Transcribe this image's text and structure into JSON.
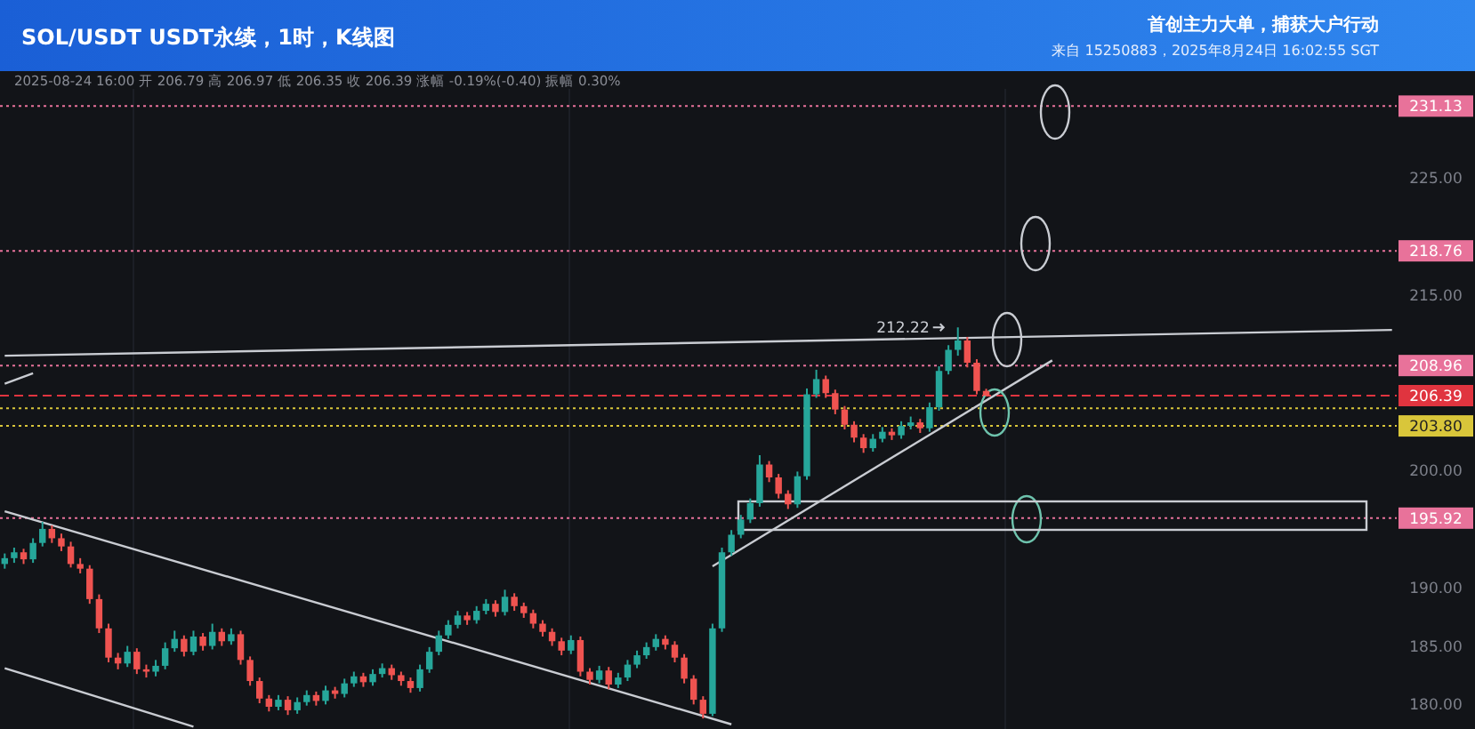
{
  "chart_data": {
    "type": "candlestick",
    "title": "SOL/USDT USDT永续，1时，K线图",
    "subtitle": "首创主力大单，捕获大户行动",
    "annotations": [
      "2025-08-24 16:00 开 206.79 高 206.97 低 206.35 收 206.39 涨幅 -0.19%(-0.40) 振幅 0.30%",
      "来自 15250883，2025年8月24日 16:02:55 SGT",
      "212.22"
    ],
    "categories": [
      null,
      null,
      null,
      null,
      null,
      null,
      null,
      null,
      null,
      null,
      null,
      null,
      null,
      null,
      null,
      null,
      null,
      null,
      null,
      null,
      null,
      null,
      null,
      null,
      null,
      null,
      null,
      null,
      null,
      null,
      null,
      null,
      null,
      null,
      null,
      null,
      null,
      null,
      null,
      null,
      null,
      null,
      null,
      null,
      null,
      null,
      null,
      null,
      null,
      null,
      null,
      null,
      null,
      null,
      null,
      null,
      null,
      null,
      null,
      null,
      null,
      null,
      null,
      null,
      null,
      null,
      null,
      null,
      null,
      null,
      null,
      null,
      null,
      null,
      null,
      null,
      null,
      null,
      null,
      null,
      null,
      null,
      null,
      null,
      null,
      null,
      null,
      null,
      null,
      null,
      null,
      null,
      null,
      null,
      null,
      null,
      null,
      null,
      null,
      null,
      null,
      null,
      null,
      null,
      null,
      null,
      null,
      null,
      null,
      null,
      null,
      null,
      null,
      null,
      null,
      null,
      null,
      null,
      null,
      null,
      null,
      null,
      null,
      null,
      null,
      null,
      null,
      null,
      null,
      null,
      null,
      null,
      null,
      null,
      null,
      null,
      null,
      null,
      null,
      null,
      null,
      null,
      null,
      null,
      null,
      null,
      null,
      null
    ],
    "ohlc": [
      [
        192.0,
        192.9,
        191.6,
        192.5
      ],
      [
        192.5,
        193.4,
        192.1,
        193.0
      ],
      [
        193.0,
        193.3,
        192.0,
        192.4
      ],
      [
        192.4,
        194.2,
        192.1,
        193.8
      ],
      [
        193.8,
        195.6,
        193.5,
        195.0
      ],
      [
        195.0,
        195.3,
        193.8,
        194.2
      ],
      [
        194.2,
        194.6,
        193.1,
        193.5
      ],
      [
        193.5,
        193.9,
        191.7,
        192.0
      ],
      [
        192.0,
        192.5,
        191.2,
        191.6
      ],
      [
        191.6,
        191.9,
        188.6,
        189.0
      ],
      [
        189.0,
        189.4,
        186.1,
        186.5
      ],
      [
        186.5,
        186.9,
        183.6,
        184.0
      ],
      [
        184.0,
        184.4,
        183.0,
        183.5
      ],
      [
        183.5,
        185.0,
        183.2,
        184.5
      ],
      [
        184.5,
        184.8,
        182.6,
        183.0
      ],
      [
        183.0,
        183.4,
        182.3,
        182.8
      ],
      [
        182.8,
        183.8,
        182.4,
        183.3
      ],
      [
        183.3,
        185.3,
        183.0,
        184.8
      ],
      [
        184.8,
        186.3,
        184.5,
        185.6
      ],
      [
        185.6,
        185.9,
        184.1,
        184.5
      ],
      [
        184.5,
        186.3,
        184.2,
        185.8
      ],
      [
        185.8,
        186.1,
        184.6,
        185.0
      ],
      [
        185.0,
        186.9,
        184.7,
        186.2
      ],
      [
        186.2,
        186.5,
        185.0,
        185.4
      ],
      [
        185.4,
        186.5,
        185.1,
        186.0
      ],
      [
        186.0,
        186.3,
        183.4,
        183.8
      ],
      [
        183.8,
        184.1,
        181.6,
        182.0
      ],
      [
        182.0,
        182.3,
        180.1,
        180.5
      ],
      [
        180.5,
        180.8,
        179.4,
        179.8
      ],
      [
        179.8,
        180.8,
        179.5,
        180.4
      ],
      [
        180.4,
        180.7,
        179.1,
        179.5
      ],
      [
        179.5,
        180.6,
        179.2,
        180.2
      ],
      [
        180.2,
        181.2,
        179.9,
        180.8
      ],
      [
        180.8,
        181.1,
        179.9,
        180.3
      ],
      [
        180.3,
        181.6,
        180.0,
        181.2
      ],
      [
        181.2,
        181.5,
        180.5,
        180.9
      ],
      [
        180.9,
        182.2,
        180.6,
        181.8
      ],
      [
        181.8,
        182.8,
        181.5,
        182.4
      ],
      [
        182.4,
        182.7,
        181.5,
        181.9
      ],
      [
        181.9,
        183.0,
        181.6,
        182.6
      ],
      [
        182.6,
        183.5,
        182.3,
        183.1
      ],
      [
        183.1,
        183.4,
        182.1,
        182.5
      ],
      [
        182.5,
        182.8,
        181.6,
        182.0
      ],
      [
        182.0,
        182.3,
        181.0,
        181.4
      ],
      [
        181.4,
        183.4,
        181.1,
        183.0
      ],
      [
        183.0,
        184.9,
        182.7,
        184.5
      ],
      [
        184.5,
        186.3,
        184.2,
        185.9
      ],
      [
        185.9,
        187.2,
        185.6,
        186.8
      ],
      [
        186.8,
        188.0,
        186.5,
        187.6
      ],
      [
        187.6,
        187.9,
        186.8,
        187.2
      ],
      [
        187.2,
        188.4,
        186.9,
        188.0
      ],
      [
        188.0,
        189.0,
        187.7,
        188.6
      ],
      [
        188.6,
        188.9,
        187.5,
        187.9
      ],
      [
        187.9,
        189.8,
        187.6,
        189.2
      ],
      [
        189.2,
        189.5,
        188.0,
        188.4
      ],
      [
        188.4,
        188.7,
        187.4,
        187.8
      ],
      [
        187.8,
        188.1,
        186.5,
        186.9
      ],
      [
        186.9,
        187.2,
        185.8,
        186.2
      ],
      [
        186.2,
        186.5,
        185.0,
        185.4
      ],
      [
        185.4,
        185.7,
        184.2,
        184.6
      ],
      [
        184.6,
        185.9,
        184.3,
        185.5
      ],
      [
        185.5,
        185.8,
        182.4,
        182.8
      ],
      [
        182.8,
        183.1,
        181.7,
        182.1
      ],
      [
        182.1,
        183.3,
        181.8,
        182.9
      ],
      [
        182.9,
        183.2,
        181.3,
        181.7
      ],
      [
        181.7,
        182.7,
        181.4,
        182.3
      ],
      [
        182.3,
        183.8,
        182.0,
        183.4
      ],
      [
        183.4,
        184.6,
        183.1,
        184.2
      ],
      [
        184.2,
        185.3,
        183.9,
        184.9
      ],
      [
        184.9,
        186.0,
        184.6,
        185.6
      ],
      [
        185.6,
        185.9,
        184.7,
        185.1
      ],
      [
        185.1,
        185.4,
        183.6,
        184.0
      ],
      [
        184.0,
        184.3,
        181.8,
        182.2
      ],
      [
        182.2,
        182.5,
        180.0,
        180.4
      ],
      [
        180.4,
        180.7,
        178.8,
        179.2
      ],
      [
        179.2,
        186.9,
        179.0,
        186.5
      ],
      [
        186.5,
        193.4,
        186.2,
        193.0
      ],
      [
        193.0,
        194.9,
        192.7,
        194.5
      ],
      [
        194.5,
        196.2,
        194.2,
        195.8
      ],
      [
        195.8,
        197.6,
        195.5,
        197.2
      ],
      [
        197.2,
        201.3,
        196.9,
        200.5
      ],
      [
        200.5,
        200.8,
        199.0,
        199.4
      ],
      [
        199.4,
        199.7,
        197.6,
        198.0
      ],
      [
        198.0,
        198.3,
        196.7,
        197.1
      ],
      [
        197.1,
        199.9,
        196.8,
        199.5
      ],
      [
        199.5,
        207.0,
        199.2,
        206.5
      ],
      [
        206.5,
        208.6,
        206.2,
        207.8
      ],
      [
        207.8,
        208.1,
        206.2,
        206.6
      ],
      [
        206.6,
        206.9,
        204.8,
        205.2
      ],
      [
        205.2,
        205.5,
        203.5,
        203.9
      ],
      [
        203.9,
        204.2,
        202.4,
        202.8
      ],
      [
        202.8,
        203.1,
        201.5,
        201.9
      ],
      [
        201.9,
        203.1,
        201.6,
        202.7
      ],
      [
        202.7,
        203.7,
        202.4,
        203.3
      ],
      [
        203.3,
        203.6,
        202.6,
        203.0
      ],
      [
        203.0,
        204.2,
        202.7,
        203.8
      ],
      [
        203.8,
        204.6,
        203.5,
        204.1
      ],
      [
        204.1,
        204.4,
        203.2,
        203.6
      ],
      [
        203.6,
        205.8,
        203.3,
        205.4
      ],
      [
        205.4,
        208.9,
        205.1,
        208.5
      ],
      [
        208.5,
        210.7,
        208.2,
        210.3
      ],
      [
        210.3,
        212.22,
        209.8,
        211.1
      ],
      [
        211.1,
        211.4,
        208.8,
        209.2
      ],
      [
        209.2,
        209.5,
        206.5,
        206.79
      ],
      [
        206.79,
        206.97,
        206.35,
        206.39
      ],
      null,
      null,
      null,
      null,
      null,
      null,
      null,
      null,
      null,
      null,
      null,
      null,
      null,
      null,
      null,
      null,
      null,
      null,
      null,
      null,
      null,
      null,
      null,
      null,
      null,
      null,
      null,
      null,
      null,
      null,
      null,
      null,
      null,
      null,
      null,
      null,
      null,
      null,
      null,
      null,
      null,
      null,
      null
    ],
    "series": [
      {
        "type": "line",
        "color": "#c9ccd2",
        "values": [
          196.5,
          null,
          null,
          null,
          null,
          null,
          null,
          null,
          null,
          null,
          null,
          null,
          null,
          null,
          null,
          null,
          null,
          null,
          null,
          null,
          null,
          null,
          null,
          null,
          null,
          null,
          null,
          null,
          null,
          null,
          null,
          null,
          null,
          null,
          null,
          null,
          null,
          null,
          null,
          null,
          null,
          null,
          null,
          null,
          null,
          null,
          null,
          null,
          null,
          null,
          null,
          null,
          null,
          null,
          null,
          null,
          null,
          null,
          null,
          null,
          null,
          null,
          null,
          null,
          null,
          null,
          null,
          null,
          null,
          null,
          null,
          null,
          null,
          null,
          null,
          null,
          null,
          178.3,
          null,
          null,
          null,
          null,
          null,
          null,
          null,
          null,
          null,
          null,
          null,
          null,
          null,
          null,
          null,
          null,
          null,
          null,
          null,
          null,
          null,
          null,
          null,
          null,
          null,
          null,
          null,
          null,
          null,
          null,
          null,
          null,
          null,
          null,
          null,
          null,
          null,
          null,
          null,
          null,
          null,
          null,
          null,
          null,
          null,
          null,
          null,
          null,
          null,
          null,
          null,
          null,
          null,
          null,
          null,
          null,
          null,
          null,
          null,
          null,
          null,
          null,
          null,
          null,
          null,
          null,
          null,
          null,
          null,
          null
        ]
      },
      {
        "type": "line",
        "color": "#c9ccd2",
        "values": [
          183.1,
          null,
          null,
          null,
          null,
          null,
          null,
          null,
          null,
          null,
          null,
          null,
          null,
          null,
          null,
          null,
          null,
          null,
          null,
          null,
          178.1,
          null,
          null,
          null,
          null,
          null,
          null,
          null,
          null,
          null,
          null,
          null,
          null,
          null,
          null,
          null,
          null,
          null,
          null,
          null,
          null,
          null,
          null,
          null,
          null,
          null,
          null,
          null,
          null,
          null,
          null,
          null,
          null,
          null,
          null,
          null,
          null,
          null,
          null,
          null,
          null,
          null,
          null,
          null,
          null,
          null,
          null,
          null,
          null,
          null,
          null,
          null,
          null,
          null,
          null,
          null,
          null,
          null,
          null,
          null,
          null,
          null,
          null,
          null,
          null,
          null,
          null,
          null,
          null,
          null,
          null,
          null,
          null,
          null,
          null,
          null,
          null,
          null,
          null,
          null,
          null,
          null,
          null,
          null,
          null,
          null,
          null,
          null,
          null,
          null,
          null,
          null,
          null,
          null,
          null,
          null,
          null,
          null,
          null,
          null,
          null,
          null,
          null,
          null,
          null,
          null,
          null,
          null,
          null,
          null,
          null,
          null,
          null,
          null,
          null,
          null,
          null,
          null,
          null,
          null,
          null,
          null,
          null,
          null,
          null,
          null,
          null,
          null
        ]
      },
      {
        "type": "line",
        "color": "#c9ccd2",
        "values": [
          209.8,
          null,
          null,
          null,
          null,
          null,
          null,
          null,
          null,
          null,
          null,
          null,
          null,
          null,
          null,
          null,
          null,
          null,
          null,
          null,
          null,
          null,
          null,
          null,
          null,
          null,
          null,
          null,
          null,
          null,
          null,
          null,
          null,
          null,
          null,
          null,
          null,
          null,
          null,
          null,
          null,
          null,
          null,
          null,
          null,
          null,
          null,
          null,
          null,
          null,
          null,
          null,
          null,
          null,
          null,
          null,
          null,
          null,
          null,
          null,
          null,
          null,
          null,
          null,
          null,
          null,
          null,
          null,
          null,
          null,
          null,
          null,
          null,
          null,
          null,
          null,
          null,
          null,
          null,
          null,
          null,
          null,
          null,
          null,
          null,
          null,
          null,
          null,
          null,
          null,
          null,
          null,
          null,
          null,
          null,
          null,
          null,
          null,
          null,
          null,
          null,
          null,
          null,
          null,
          null,
          null,
          null,
          null,
          null,
          null,
          null,
          null,
          null,
          null,
          null,
          null,
          null,
          null,
          null,
          null,
          null,
          null,
          null,
          null,
          null,
          null,
          null,
          null,
          null,
          null,
          null,
          null,
          null,
          null,
          null,
          null,
          null,
          null,
          null,
          null,
          null,
          null,
          null,
          null,
          null,
          null,
          null,
          212.0
        ]
      },
      {
        "type": "line",
        "color": "#c9ccd2",
        "values": [
          207.4,
          null,
          null,
          208.3,
          null,
          null,
          null,
          null,
          null,
          null,
          null,
          null,
          null,
          null,
          null,
          null,
          null,
          null,
          null,
          null,
          null,
          null,
          null,
          null,
          null,
          null,
          null,
          null,
          null,
          null,
          null,
          null,
          null,
          null,
          null,
          null,
          null,
          null,
          null,
          null,
          null,
          null,
          null,
          null,
          null,
          null,
          null,
          null,
          null,
          null,
          null,
          null,
          null,
          null,
          null,
          null,
          null,
          null,
          null,
          null,
          null,
          null,
          null,
          null,
          null,
          null,
          null,
          null,
          null,
          null,
          null,
          null,
          null,
          null,
          null,
          null,
          null,
          null,
          null,
          null,
          null,
          null,
          null,
          null,
          null,
          null,
          null,
          null,
          null,
          null,
          null,
          null,
          null,
          null,
          null,
          null,
          null,
          null,
          null,
          null,
          null,
          null,
          null,
          null,
          null,
          null,
          null,
          null,
          null,
          null,
          null,
          null,
          null,
          null,
          null,
          null,
          null,
          null,
          null,
          null,
          null,
          null,
          null,
          null,
          null,
          null,
          null,
          null,
          null,
          null,
          null,
          null,
          null,
          null,
          null,
          null,
          null,
          null,
          null,
          null,
          null,
          null,
          null,
          null,
          null,
          null,
          null,
          null
        ]
      },
      {
        "type": "line",
        "color": "#c9ccd2",
        "values": [
          null,
          null,
          null,
          null,
          null,
          null,
          null,
          null,
          null,
          null,
          null,
          null,
          null,
          null,
          null,
          null,
          null,
          null,
          null,
          null,
          null,
          null,
          null,
          null,
          null,
          null,
          null,
          null,
          null,
          null,
          null,
          null,
          null,
          null,
          null,
          null,
          null,
          null,
          null,
          null,
          null,
          null,
          null,
          null,
          null,
          null,
          null,
          null,
          null,
          null,
          null,
          null,
          null,
          null,
          null,
          null,
          null,
          null,
          null,
          null,
          null,
          null,
          null,
          null,
          null,
          null,
          null,
          null,
          null,
          null,
          null,
          null,
          null,
          null,
          null,
          191.8,
          null,
          null,
          null,
          null,
          null,
          null,
          null,
          null,
          null,
          null,
          null,
          null,
          null,
          null,
          null,
          null,
          null,
          null,
          null,
          null,
          null,
          null,
          null,
          null,
          null,
          null,
          null,
          null,
          null,
          null,
          null,
          null,
          null,
          null,
          null,
          209.4,
          null,
          null,
          null,
          null,
          null,
          null,
          null,
          null,
          null,
          null,
          null,
          null,
          null,
          null,
          null,
          null,
          null,
          null,
          null,
          null,
          null,
          null,
          null,
          null,
          null,
          null,
          null,
          null,
          null,
          null,
          null,
          null,
          null,
          null,
          null,
          null
        ]
      }
    ],
    "ylim": [
      177.9,
      232.6
    ],
    "yticks": [
      {
        "value": 180,
        "label": "180.00"
      },
      {
        "value": 185,
        "label": "185.00"
      },
      {
        "value": 190,
        "label": "190.00"
      },
      {
        "value": 200,
        "label": "200.00"
      },
      {
        "value": 215,
        "label": "215.00"
      },
      {
        "value": 225,
        "label": "225.00"
      }
    ],
    "ref_lines": [
      {
        "axis": "y",
        "value": 231.13,
        "label": "231.13",
        "color": "#e8729a",
        "line_style": "dotted"
      },
      {
        "axis": "y",
        "value": 218.76,
        "label": "218.76",
        "color": "#e8729a",
        "line_style": "dotted"
      },
      {
        "axis": "y",
        "value": 208.96,
        "label": "208.96",
        "color": "#e8729a",
        "line_style": "dotted"
      },
      {
        "axis": "y",
        "value": 205.3,
        "color": "#d9c63a",
        "line_style": "dotted"
      },
      {
        "axis": "y",
        "value": 203.8,
        "label": "203.80",
        "color": "#d9c63a",
        "line_style": "dotted"
      },
      {
        "axis": "y",
        "value": 206.39,
        "label": "206.39",
        "color": "#e0343f",
        "line_style": "dashed"
      },
      {
        "axis": "y",
        "value": 195.92,
        "label": "195.92",
        "color": "#e8729a",
        "line_style": "dotted"
      }
    ]
  }
}
